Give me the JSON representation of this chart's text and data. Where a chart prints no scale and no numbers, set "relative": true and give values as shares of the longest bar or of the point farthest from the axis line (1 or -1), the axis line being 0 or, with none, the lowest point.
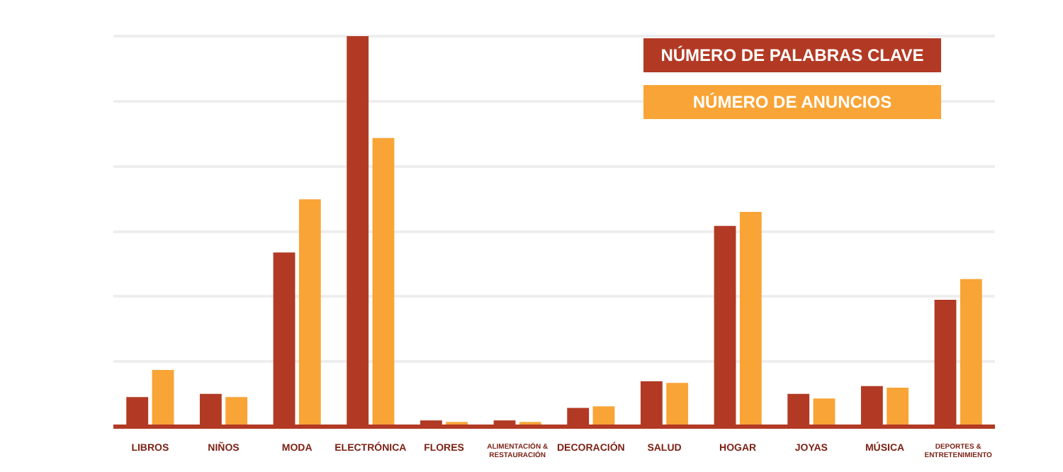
{
  "chart_data": {
    "type": "bar",
    "relative": true,
    "grid": "y",
    "legend": "top right",
    "categories": [
      "LIBROS",
      "NIÑOS",
      "MODA",
      "ELECTRÓNICA",
      "FLORES",
      "ALIMENTACIÓN & RESTAURACIÓN",
      "DECORACIÓN",
      "SALUD",
      "HOGAR",
      "JOYAS",
      "MÚSICA",
      "DEPORTES & ENTRETENIMIENTO"
    ],
    "series": [
      {
        "name": "NÚMERO DE PALABRAS CLAVE",
        "color": "#b23a24",
        "values": [
          0.076,
          0.084,
          0.446,
          1,
          0.016,
          0.016,
          0.048,
          0.116,
          0.514,
          0.084,
          0.104,
          0.325
        ]
      },
      {
        "name": "NÚMERO DE ANUNCIOS",
        "color": "#f9a436",
        "values": [
          0.145,
          0.076,
          0.582,
          0.739,
          0.012,
          0.012,
          0.052,
          0.112,
          0.55,
          0.072,
          0.1,
          0.378
        ]
      }
    ]
  }
}
